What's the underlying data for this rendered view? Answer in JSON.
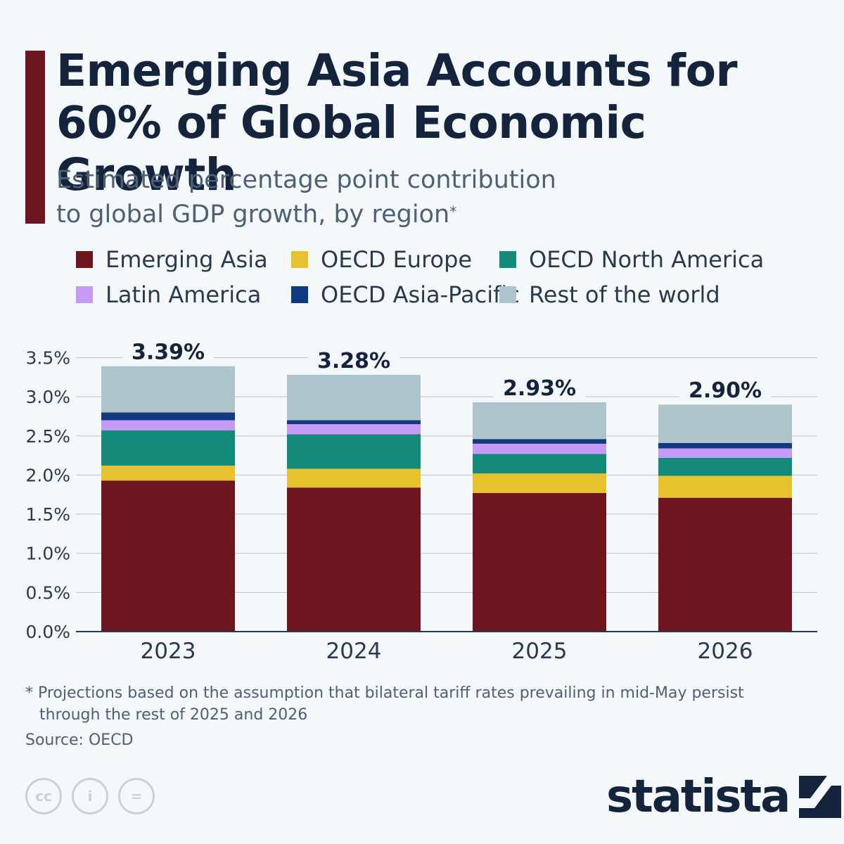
{
  "header": {
    "title": "Emerging Asia Accounts for 60% of Global Economic Growth",
    "subtitle_line1": "Estimated percentage point contribution",
    "subtitle_line2": "to global GDP growth, by region",
    "subtitle_marker": "*"
  },
  "colors": {
    "accent": "#6d1620",
    "emerging_asia": "#6d1620",
    "oecd_europe": "#e8c22e",
    "oecd_north_america": "#138a7a",
    "latin_america": "#c49af5",
    "oecd_asia_pacific": "#103a7f",
    "rest_of_world": "#adc4cd"
  },
  "legend": [
    {
      "label": "Emerging Asia",
      "color": "#6d1620"
    },
    {
      "label": "OECD Europe",
      "color": "#e8c22e"
    },
    {
      "label": "OECD North America",
      "color": "#138a7a"
    },
    {
      "label": "Latin America",
      "color": "#c49af5"
    },
    {
      "label": "OECD Asia-Pacific",
      "color": "#103a7f"
    },
    {
      "label": "Rest of the world",
      "color": "#adc4cd"
    }
  ],
  "chart_data": {
    "type": "bar",
    "stacked": true,
    "categories": [
      "2023",
      "2024",
      "2025",
      "2026"
    ],
    "series": [
      {
        "name": "Emerging Asia",
        "values": [
          1.93,
          1.84,
          1.77,
          1.71
        ]
      },
      {
        "name": "OECD Europe",
        "values": [
          0.19,
          0.24,
          0.25,
          0.28
        ]
      },
      {
        "name": "OECD North America",
        "values": [
          0.45,
          0.44,
          0.25,
          0.23
        ]
      },
      {
        "name": "Latin America",
        "values": [
          0.13,
          0.13,
          0.13,
          0.12
        ]
      },
      {
        "name": "OECD Asia-Pacific",
        "values": [
          0.1,
          0.05,
          0.06,
          0.07
        ]
      },
      {
        "name": "Rest of the world",
        "values": [
          0.59,
          0.58,
          0.47,
          0.49
        ]
      }
    ],
    "totals": [
      3.39,
      3.28,
      2.93,
      2.9
    ],
    "total_labels": [
      "3.39%",
      "3.28%",
      "2.93%",
      "2.90%"
    ],
    "y_ticks": [
      0,
      0.5,
      1.0,
      1.5,
      2.0,
      2.5,
      3.0,
      3.5
    ],
    "y_tick_labels": [
      "0.0%",
      "0.5%",
      "1.0%",
      "1.5%",
      "2.0%",
      "2.5%",
      "3.0%",
      "3.5%"
    ],
    "ylim": [
      0,
      3.5
    ],
    "title": "Emerging Asia Accounts for 60% of Global Economic Growth",
    "xlabel": "",
    "ylabel": "",
    "grid": true,
    "legend_position": "top"
  },
  "footer": {
    "footnote_line1": "* Projections based on the assumption that bilateral tariff rates prevailing in mid-May persist",
    "footnote_line2": "through the rest of 2025 and 2026",
    "source": "Source: OECD",
    "brand": "statista",
    "cc_icons": [
      "cc-icon",
      "attribution-icon",
      "no-derivatives-icon"
    ],
    "cc_symbols": [
      "cc",
      "i",
      "="
    ]
  }
}
